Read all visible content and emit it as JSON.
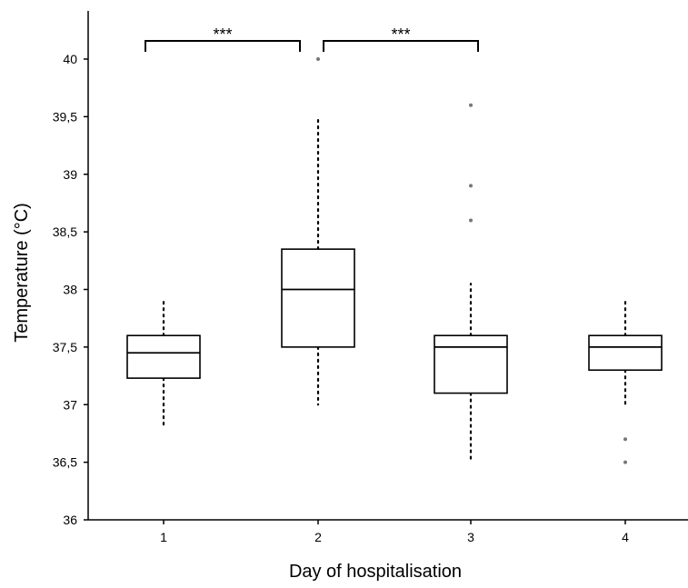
{
  "chart_data": {
    "type": "box",
    "xlabel": "Day of hospitalisation",
    "ylabel": "Temperature (°C)",
    "categories": [
      "1",
      "2",
      "3",
      "4"
    ],
    "ylim": [
      36,
      40.4
    ],
    "yticks": [
      {
        "value": 36,
        "label": "36"
      },
      {
        "value": 36.5,
        "label": "36,5"
      },
      {
        "value": 37,
        "label": "37"
      },
      {
        "value": 37.5,
        "label": "37,5"
      },
      {
        "value": 38,
        "label": "38"
      },
      {
        "value": 38.5,
        "label": "38,5"
      },
      {
        "value": 39,
        "label": "39"
      },
      {
        "value": 39.5,
        "label": "39,5"
      },
      {
        "value": 40,
        "label": "40"
      }
    ],
    "grid": false,
    "legend": "none",
    "boxes": [
      {
        "category": "1",
        "whisker_low": 36.8,
        "q1": 37.23,
        "median": 37.45,
        "q3": 37.6,
        "whisker_high": 37.9,
        "outliers": []
      },
      {
        "category": "2",
        "whisker_low": 37.0,
        "q1": 37.5,
        "median": 38.0,
        "q3": 38.35,
        "whisker_high": 39.5,
        "outliers": [
          40.0
        ]
      },
      {
        "category": "3",
        "whisker_low": 36.52,
        "q1": 37.1,
        "median": 37.5,
        "q3": 37.6,
        "whisker_high": 38.05,
        "outliers": [
          38.6,
          38.9,
          39.6
        ]
      },
      {
        "category": "4",
        "whisker_low": 37.0,
        "q1": 37.3,
        "median": 37.5,
        "q3": 37.6,
        "whisker_high": 37.9,
        "outliers": [
          36.5,
          36.7
        ]
      }
    ],
    "significance": [
      {
        "from": "1",
        "to": "2",
        "label": "***"
      },
      {
        "from": "2",
        "to": "3",
        "label": "***"
      }
    ]
  }
}
